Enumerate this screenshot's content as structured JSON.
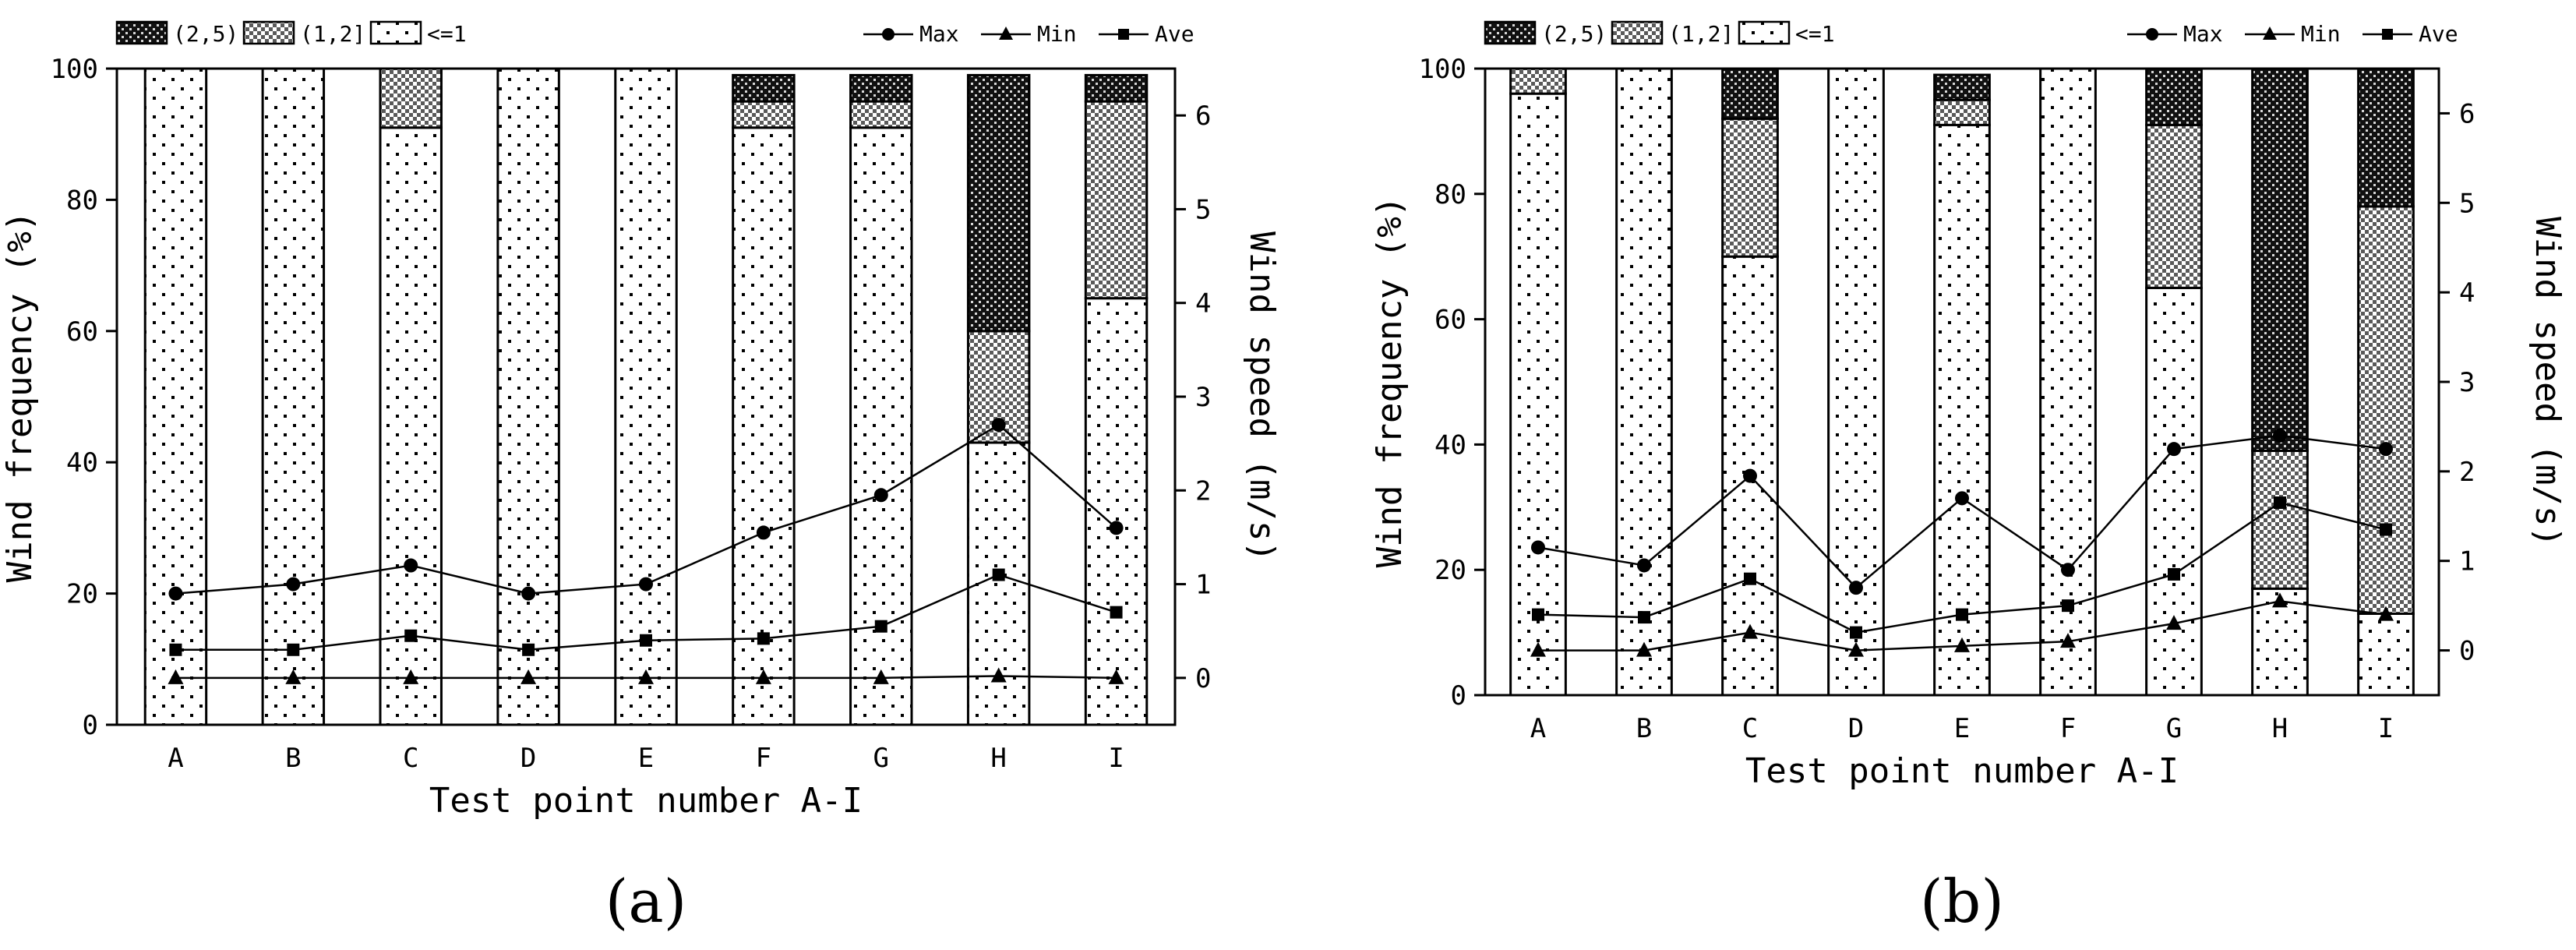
{
  "figure": {
    "panels": [
      "(a)",
      "(b)"
    ]
  },
  "chart_data": [
    {
      "type": "bar",
      "panel_label": "(a)",
      "categories": [
        "A",
        "B",
        "C",
        "D",
        "E",
        "F",
        "G",
        "H",
        "I"
      ],
      "xlabel": "Test point number A-I",
      "ylabel": "Wind frequency (%)",
      "y2label": "Wind speed (m/s)",
      "ylim": [
        0,
        100
      ],
      "y2lim": [
        -0.5,
        6.5
      ],
      "yticks": [
        0,
        20,
        40,
        60,
        80,
        100
      ],
      "y2ticks": [
        0,
        1,
        2,
        3,
        4,
        5,
        6
      ],
      "bar_series": [
        {
          "name": "<=1",
          "values": [
            100,
            100,
            91,
            100,
            100,
            91,
            91,
            43,
            65
          ]
        },
        {
          "name": "(1,2]",
          "values": [
            0,
            0,
            9,
            0,
            0,
            4,
            4,
            17,
            30
          ]
        },
        {
          "name": "(2,5)",
          "values": [
            0,
            0,
            0,
            0,
            0,
            4,
            4,
            39,
            4
          ]
        }
      ],
      "line_series": [
        {
          "name": "Max",
          "marker": "circle",
          "values": [
            0.9,
            1.0,
            1.2,
            0.9,
            1.0,
            1.55,
            1.95,
            2.7,
            1.6
          ]
        },
        {
          "name": "Min",
          "marker": "triangle",
          "values": [
            0.0,
            0.0,
            0.0,
            0.0,
            0.0,
            0.0,
            0.0,
            0.02,
            0.0
          ]
        },
        {
          "name": "Ave",
          "marker": "square",
          "values": [
            0.3,
            0.3,
            0.45,
            0.3,
            0.4,
            0.42,
            0.55,
            1.1,
            0.7
          ]
        }
      ],
      "legend_placement": "top"
    },
    {
      "type": "bar",
      "panel_label": "(b)",
      "categories": [
        "A",
        "B",
        "C",
        "D",
        "E",
        "F",
        "G",
        "H",
        "I"
      ],
      "xlabel": "Test point number A-I",
      "ylabel": "Wind frequency (%)",
      "y2label": "Wind speed (m/s)",
      "ylim": [
        0,
        100
      ],
      "y2lim": [
        -0.5,
        6.5
      ],
      "yticks": [
        0,
        20,
        40,
        60,
        80,
        100
      ],
      "y2ticks": [
        0,
        1,
        2,
        3,
        4,
        5,
        6
      ],
      "bar_series": [
        {
          "name": "<=1",
          "values": [
            96,
            100,
            70,
            100,
            91,
            100,
            65,
            17,
            13
          ]
        },
        {
          "name": "(1,2]",
          "values": [
            4,
            0,
            22,
            0,
            4,
            0,
            26,
            22,
            65
          ]
        },
        {
          "name": "(2,5)",
          "values": [
            0,
            0,
            8,
            0,
            4,
            0,
            9,
            61,
            22
          ]
        }
      ],
      "line_series": [
        {
          "name": "Max",
          "marker": "circle",
          "values": [
            1.15,
            0.95,
            1.95,
            0.7,
            1.7,
            0.9,
            2.25,
            2.4,
            2.25
          ]
        },
        {
          "name": "Min",
          "marker": "triangle",
          "values": [
            0.0,
            0.0,
            0.2,
            0.0,
            0.05,
            0.1,
            0.3,
            0.55,
            0.4
          ]
        },
        {
          "name": "Ave",
          "marker": "square",
          "values": [
            0.4,
            0.37,
            0.8,
            0.2,
            0.4,
            0.5,
            0.85,
            1.65,
            1.35
          ]
        }
      ],
      "legend_placement": "top"
    }
  ]
}
